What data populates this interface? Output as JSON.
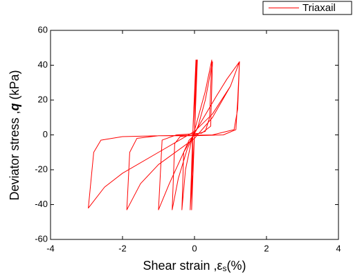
{
  "chart_data": {
    "type": "line",
    "xlabel": [
      "Shear strain ,",
      "ε",
      "s",
      "(%)"
    ],
    "ylabel": [
      "Deviator stress ,",
      "q",
      " (kPa)"
    ],
    "xlim": [
      -4,
      4
    ],
    "xticks": [
      -4,
      -2,
      0,
      2,
      4
    ],
    "ylim": [
      -60,
      60
    ],
    "yticks": [
      -60,
      -40,
      -20,
      0,
      20,
      40,
      60
    ],
    "legend": "top-right",
    "series": [
      {
        "name": "Triaxail",
        "color": "#ff0000",
        "x": [
          0,
          0.04,
          -0.04,
          -0.08,
          0,
          0.06,
          -0.05,
          -0.12,
          0,
          0.08,
          0.0,
          -0.15,
          -0.3,
          -0.35,
          -0.25,
          -0.1,
          0.1,
          0.3,
          0.48,
          0.42,
          0.3,
          0,
          -0.4,
          -0.55,
          -0.62,
          -0.45,
          -0.2,
          0.1,
          0.3,
          0.5,
          0.45,
          0.2,
          -0.5,
          -0.9,
          -1.0,
          -0.7,
          -0.3,
          0.2,
          0.6,
          0.9,
          1.25,
          1.2,
          1.15,
          0.8,
          0,
          -1.0,
          -1.6,
          -1.8,
          -1.88,
          -1.5,
          -1.0,
          0,
          0.5,
          1.0,
          1.25,
          1.2,
          1.1,
          0.5,
          -1,
          -2,
          -2.6,
          -2.8,
          -2.95,
          -2.5,
          -2,
          -1,
          0,
          0.5,
          1.0,
          1.25
        ],
        "values": [
          0,
          43,
          5,
          -43,
          0,
          43,
          0,
          -43,
          0,
          43,
          0,
          -3,
          -10,
          -43,
          -20,
          -5,
          10,
          25,
          43,
          10,
          2,
          0,
          -1,
          -5,
          -43,
          -25,
          -8,
          5,
          20,
          42,
          5,
          1,
          0,
          -3,
          -43,
          -28,
          -10,
          8,
          22,
          32,
          42,
          20,
          3,
          0,
          -0.5,
          -0.5,
          -2,
          -10,
          -43,
          -28,
          -17,
          -2,
          10,
          28,
          42,
          15,
          3,
          0,
          -0.5,
          -1,
          -3,
          -10,
          -42,
          -30,
          -22,
          -10,
          2,
          12,
          28,
          42
        ]
      }
    ]
  }
}
